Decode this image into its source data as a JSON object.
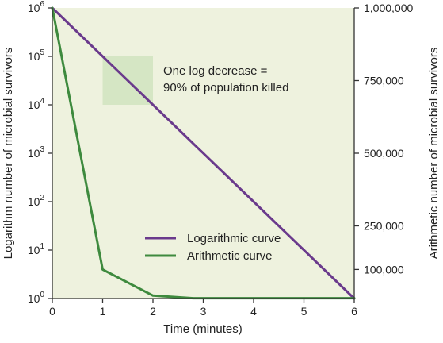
{
  "chart_data": {
    "type": "line",
    "xlabel": "Time (minutes)",
    "ylabel_left": "Logarithm number of microbial survivors",
    "ylabel_right": "Arithmetic number of microbial survivors",
    "x_ticks": [
      "0",
      "1",
      "2",
      "3",
      "4",
      "5",
      "6"
    ],
    "xlim": [
      0,
      6
    ],
    "y_left_ticks": [
      {
        "base": "10",
        "exp": "0",
        "value": 0
      },
      {
        "base": "10",
        "exp": "1",
        "value": 1
      },
      {
        "base": "10",
        "exp": "2",
        "value": 2
      },
      {
        "base": "10",
        "exp": "3",
        "value": 3
      },
      {
        "base": "10",
        "exp": "4",
        "value": 4
      },
      {
        "base": "10",
        "exp": "5",
        "value": 5
      },
      {
        "base": "10",
        "exp": "6",
        "value": 6
      }
    ],
    "y_left_scale": "log",
    "ylim_left": [
      0,
      6
    ],
    "y_right_ticks": [
      {
        "label": "1,000,000",
        "value": 1000000
      },
      {
        "label": "750,000",
        "value": 750000
      },
      {
        "label": "500,000",
        "value": 500000
      },
      {
        "label": "250,000",
        "value": 250000
      },
      {
        "label": "100,000",
        "value": 100000
      }
    ],
    "background_color": "#eef2de",
    "series": [
      {
        "name": "Logarithmic curve",
        "color": "#6a3a8c",
        "axis": "left",
        "x": [
          0,
          6
        ],
        "y": [
          1000000,
          1
        ]
      },
      {
        "name": "Arithmetic curve",
        "color": "#3e8a3e",
        "axis": "right",
        "x": [
          0,
          1,
          2,
          2.8,
          6
        ],
        "y": [
          1000000,
          100000,
          10000,
          1000,
          1000
        ]
      }
    ],
    "annotation": {
      "lines": [
        "One log decrease =",
        "90% of population killed"
      ],
      "region_x": [
        1,
        2
      ],
      "region_y_log": [
        4,
        5
      ],
      "region_color": "#d5e6c4"
    },
    "legend_placement": "lower-middle",
    "grid": false
  }
}
